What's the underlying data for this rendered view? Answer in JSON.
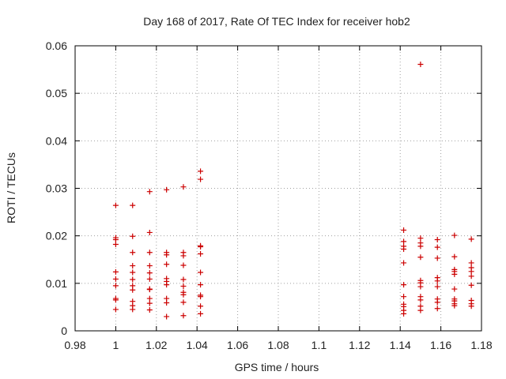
{
  "chart_data": {
    "type": "scatter",
    "title": "Day 168 of 2017, Rate Of TEC Index for receiver hob2",
    "xlabel": "GPS time / hours",
    "ylabel": "ROTI / TECUs",
    "xlim": [
      0.98,
      1.18
    ],
    "ylim": [
      0,
      0.06
    ],
    "xticks": [
      "0.98",
      "1",
      "1.02",
      "1.04",
      "1.06",
      "1.08",
      "1.1",
      "1.12",
      "1.14",
      "1.16",
      "1.18"
    ],
    "yticks": [
      "0",
      "0.01",
      "0.02",
      "0.03",
      "0.04",
      "0.05",
      "0.06"
    ],
    "grid": true,
    "marker": "plus",
    "color": "#cc0000",
    "points": [
      [
        1.0,
        0.0264
      ],
      [
        1.0,
        0.0196
      ],
      [
        1.0,
        0.0192
      ],
      [
        1.0,
        0.0182
      ],
      [
        1.0,
        0.0124
      ],
      [
        1.0,
        0.0109
      ],
      [
        1.0,
        0.0095
      ],
      [
        1.0,
        0.0068
      ],
      [
        1.0,
        0.0065
      ],
      [
        1.0,
        0.0045
      ],
      [
        1.0083,
        0.0264
      ],
      [
        1.0083,
        0.0199
      ],
      [
        1.0083,
        0.0165
      ],
      [
        1.0083,
        0.0137
      ],
      [
        1.0083,
        0.0123
      ],
      [
        1.0083,
        0.0108
      ],
      [
        1.0083,
        0.0095
      ],
      [
        1.0083,
        0.0086
      ],
      [
        1.0083,
        0.0062
      ],
      [
        1.0083,
        0.0053
      ],
      [
        1.0083,
        0.0045
      ],
      [
        1.0167,
        0.0293
      ],
      [
        1.0167,
        0.0207
      ],
      [
        1.0167,
        0.0165
      ],
      [
        1.0167,
        0.0137
      ],
      [
        1.0167,
        0.0122
      ],
      [
        1.0167,
        0.0109
      ],
      [
        1.0167,
        0.0088
      ],
      [
        1.0167,
        0.0087
      ],
      [
        1.0167,
        0.0068
      ],
      [
        1.0167,
        0.0058
      ],
      [
        1.0167,
        0.0044
      ],
      [
        1.025,
        0.0297
      ],
      [
        1.025,
        0.0165
      ],
      [
        1.025,
        0.016
      ],
      [
        1.025,
        0.014
      ],
      [
        1.025,
        0.011
      ],
      [
        1.025,
        0.0104
      ],
      [
        1.025,
        0.0097
      ],
      [
        1.025,
        0.0068
      ],
      [
        1.025,
        0.0059
      ],
      [
        1.025,
        0.003
      ],
      [
        1.0333,
        0.0303
      ],
      [
        1.0333,
        0.0165
      ],
      [
        1.0333,
        0.0158
      ],
      [
        1.0333,
        0.0138
      ],
      [
        1.0333,
        0.0108
      ],
      [
        1.0333,
        0.0094
      ],
      [
        1.0333,
        0.0081
      ],
      [
        1.0333,
        0.0076
      ],
      [
        1.0333,
        0.006
      ],
      [
        1.0333,
        0.0032
      ],
      [
        1.0417,
        0.0336
      ],
      [
        1.0417,
        0.0319
      ],
      [
        1.0417,
        0.0179
      ],
      [
        1.0417,
        0.0177
      ],
      [
        1.0417,
        0.0162
      ],
      [
        1.0417,
        0.0123
      ],
      [
        1.0417,
        0.0097
      ],
      [
        1.0417,
        0.0075
      ],
      [
        1.0417,
        0.0072
      ],
      [
        1.0417,
        0.0052
      ],
      [
        1.0417,
        0.0036
      ],
      [
        1.1417,
        0.0212
      ],
      [
        1.1417,
        0.0188
      ],
      [
        1.1417,
        0.0178
      ],
      [
        1.1417,
        0.0172
      ],
      [
        1.1417,
        0.0143
      ],
      [
        1.1417,
        0.0097
      ],
      [
        1.1417,
        0.0072
      ],
      [
        1.1417,
        0.0056
      ],
      [
        1.1417,
        0.0051
      ],
      [
        1.1417,
        0.0043
      ],
      [
        1.1417,
        0.0036
      ],
      [
        1.15,
        0.0561
      ],
      [
        1.15,
        0.0195
      ],
      [
        1.15,
        0.0185
      ],
      [
        1.15,
        0.0178
      ],
      [
        1.15,
        0.0155
      ],
      [
        1.15,
        0.0106
      ],
      [
        1.15,
        0.0101
      ],
      [
        1.15,
        0.0093
      ],
      [
        1.15,
        0.0072
      ],
      [
        1.15,
        0.0065
      ],
      [
        1.15,
        0.0052
      ],
      [
        1.15,
        0.0043
      ],
      [
        1.1583,
        0.0192
      ],
      [
        1.1583,
        0.0176
      ],
      [
        1.1583,
        0.0153
      ],
      [
        1.1583,
        0.0112
      ],
      [
        1.1583,
        0.0105
      ],
      [
        1.1583,
        0.0093
      ],
      [
        1.1583,
        0.0067
      ],
      [
        1.1583,
        0.006
      ],
      [
        1.1583,
        0.0047
      ],
      [
        1.1667,
        0.0201
      ],
      [
        1.1667,
        0.0156
      ],
      [
        1.1667,
        0.0129
      ],
      [
        1.1667,
        0.0125
      ],
      [
        1.1667,
        0.0119
      ],
      [
        1.1667,
        0.0088
      ],
      [
        1.1667,
        0.0067
      ],
      [
        1.1667,
        0.0063
      ],
      [
        1.1667,
        0.0057
      ],
      [
        1.1667,
        0.0053
      ],
      [
        1.175,
        0.0193
      ],
      [
        1.175,
        0.0143
      ],
      [
        1.175,
        0.0133
      ],
      [
        1.175,
        0.0125
      ],
      [
        1.175,
        0.0115
      ],
      [
        1.175,
        0.0096
      ],
      [
        1.175,
        0.0064
      ],
      [
        1.175,
        0.0057
      ],
      [
        1.175,
        0.0052
      ]
    ]
  }
}
